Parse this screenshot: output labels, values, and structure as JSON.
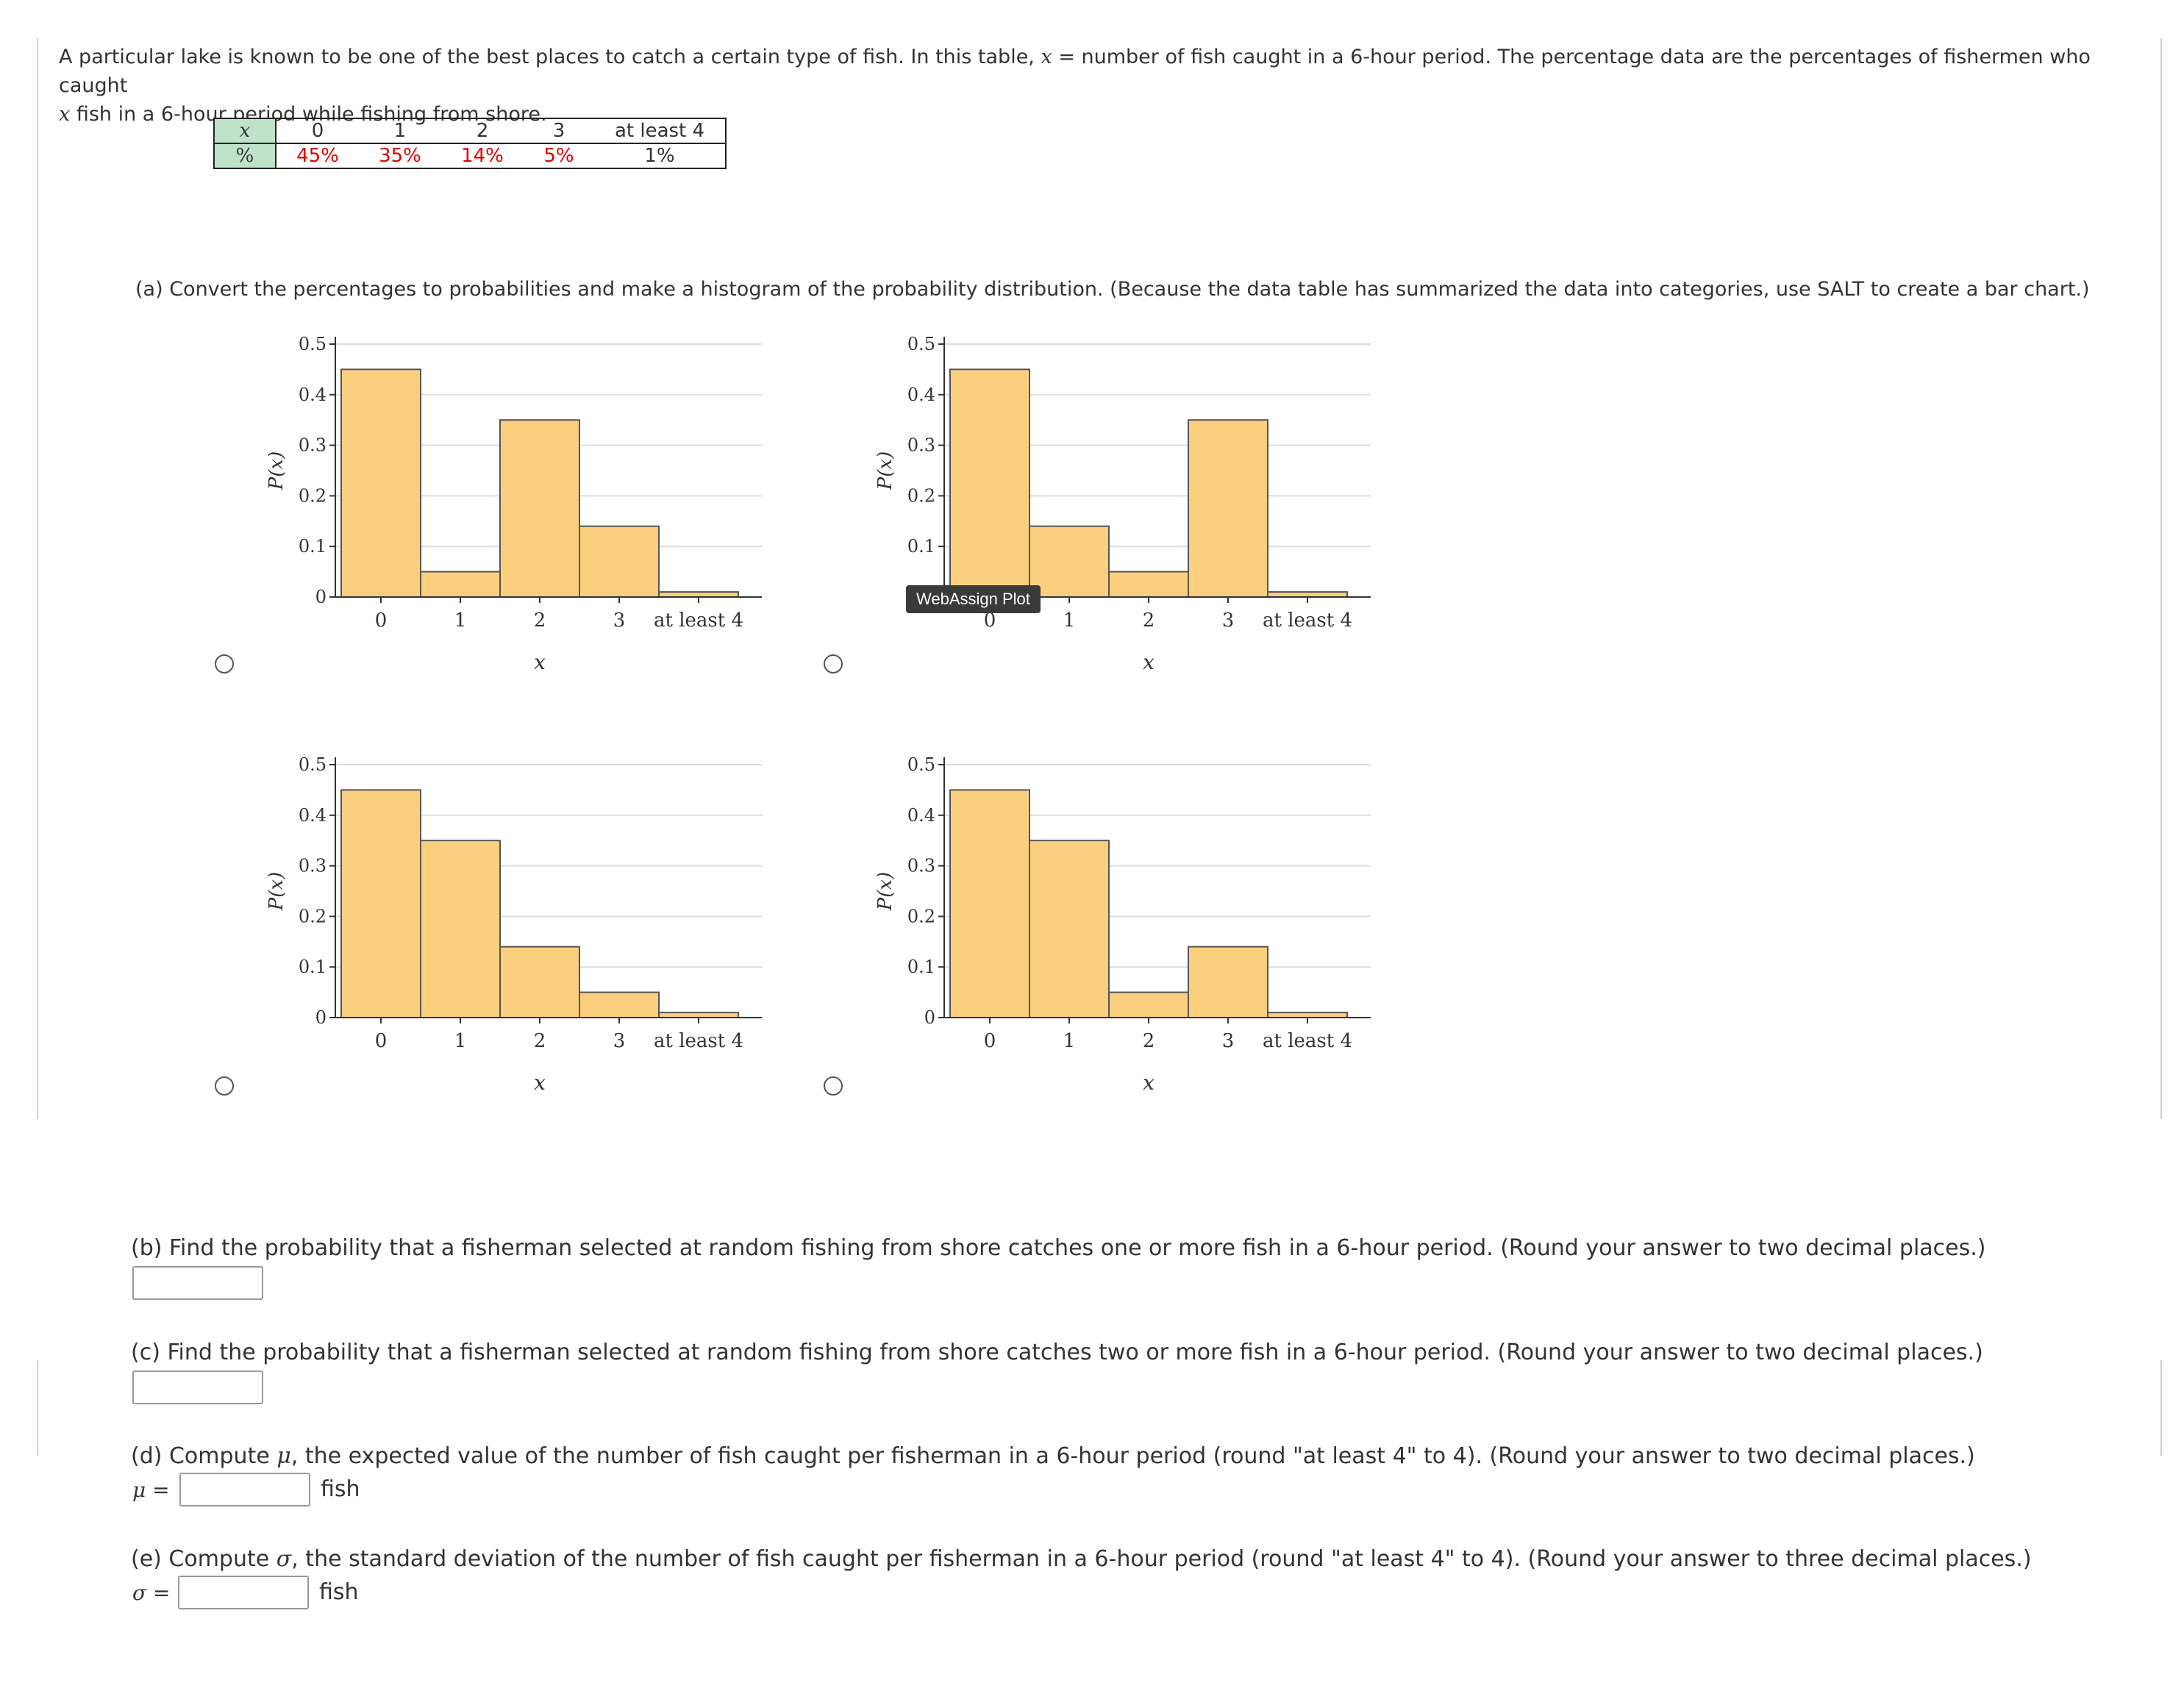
{
  "problem": {
    "intro_part1": "A particular lake is known to be one of the best places to catch a certain type of fish. In this table, ",
    "intro_var": "x",
    "intro_part2": " = number of fish caught in a 6-hour period. The percentage data are the percentages of fishermen who caught ",
    "intro_var2": "x",
    "intro_part3": " fish in a 6-hour period while fishing from shore."
  },
  "table": {
    "row_x_header": "x",
    "row_pct_header": "%",
    "x_values": [
      "0",
      "1",
      "2",
      "3",
      "at least 4"
    ],
    "pct_values": [
      "45%",
      "35%",
      "14%",
      "5%",
      "1%"
    ]
  },
  "part_a": {
    "text": "(a) Convert the percentages to probabilities and make a histogram of the probability distribution. (Because the data table has summarized the data into categories, use SALT to create a bar chart.)"
  },
  "chart_data": [
    {
      "type": "bar",
      "categories": [
        "0",
        "1",
        "2",
        "3",
        "at least 4"
      ],
      "values": [
        0.45,
        0.05,
        0.35,
        0.14,
        0.01
      ],
      "xlabel": "x",
      "ylabel": "P(x)",
      "ylim": [
        0,
        0.5
      ],
      "yticks": [
        "0",
        "0.1",
        "0.2",
        "0.3",
        "0.4",
        "0.5"
      ],
      "grid": true
    },
    {
      "type": "bar",
      "categories": [
        "0",
        "1",
        "2",
        "3",
        "at least 4"
      ],
      "values": [
        0.45,
        0.14,
        0.05,
        0.35,
        0.01
      ],
      "xlabel": "x",
      "ylabel": "P(x)",
      "ylim": [
        0,
        0.5
      ],
      "yticks": [
        "0",
        "0.1",
        "0.2",
        "0.3",
        "0.4",
        "0.5"
      ],
      "grid": true
    },
    {
      "type": "bar",
      "categories": [
        "0",
        "1",
        "2",
        "3",
        "at least 4"
      ],
      "values": [
        0.45,
        0.35,
        0.14,
        0.05,
        0.01
      ],
      "xlabel": "x",
      "ylabel": "P(x)",
      "ylim": [
        0,
        0.5
      ],
      "yticks": [
        "0",
        "0.1",
        "0.2",
        "0.3",
        "0.4",
        "0.5"
      ],
      "grid": true
    },
    {
      "type": "bar",
      "categories": [
        "0",
        "1",
        "2",
        "3",
        "at least 4"
      ],
      "values": [
        0.45,
        0.35,
        0.05,
        0.14,
        0.01
      ],
      "xlabel": "x",
      "ylabel": "P(x)",
      "ylim": [
        0,
        0.5
      ],
      "yticks": [
        "0",
        "0.1",
        "0.2",
        "0.3",
        "0.4",
        "0.5"
      ],
      "grid": true
    }
  ],
  "tooltip": "WebAssign Plot",
  "colors": {
    "bar_fill": "#fbcf7e",
    "bar_stroke": "#555555",
    "grid": "#dddddd",
    "axis": "#333333",
    "red_text": "#e00000",
    "table_header_bg": "#bfe3c8"
  },
  "part_b": {
    "text": "(b) Find the probability that a fisherman selected at random fishing from shore catches one or more fish in a 6-hour period. (Round your answer to two decimal places.)",
    "value": ""
  },
  "part_c": {
    "text": "(c) Find the probability that a fisherman selected at random fishing from shore catches two or more fish in a 6-hour period. (Round your answer to two decimal places.)",
    "value": ""
  },
  "part_d": {
    "text_pre": "(d) Compute ",
    "sym": "μ",
    "text_post": ", the expected value of the number of fish caught per fisherman in a 6-hour period (round \"at least 4\" to 4). (Round your answer to two decimal places.)",
    "label": "μ =",
    "unit": "fish",
    "value": ""
  },
  "part_e": {
    "text_pre": "(e) Compute ",
    "sym": "σ",
    "text_post": ", the standard deviation of the number of fish caught per fisherman in a 6-hour period (round \"at least 4\" to 4). (Round your answer to three decimal places.)",
    "label": "σ =",
    "unit": "fish",
    "value": ""
  }
}
